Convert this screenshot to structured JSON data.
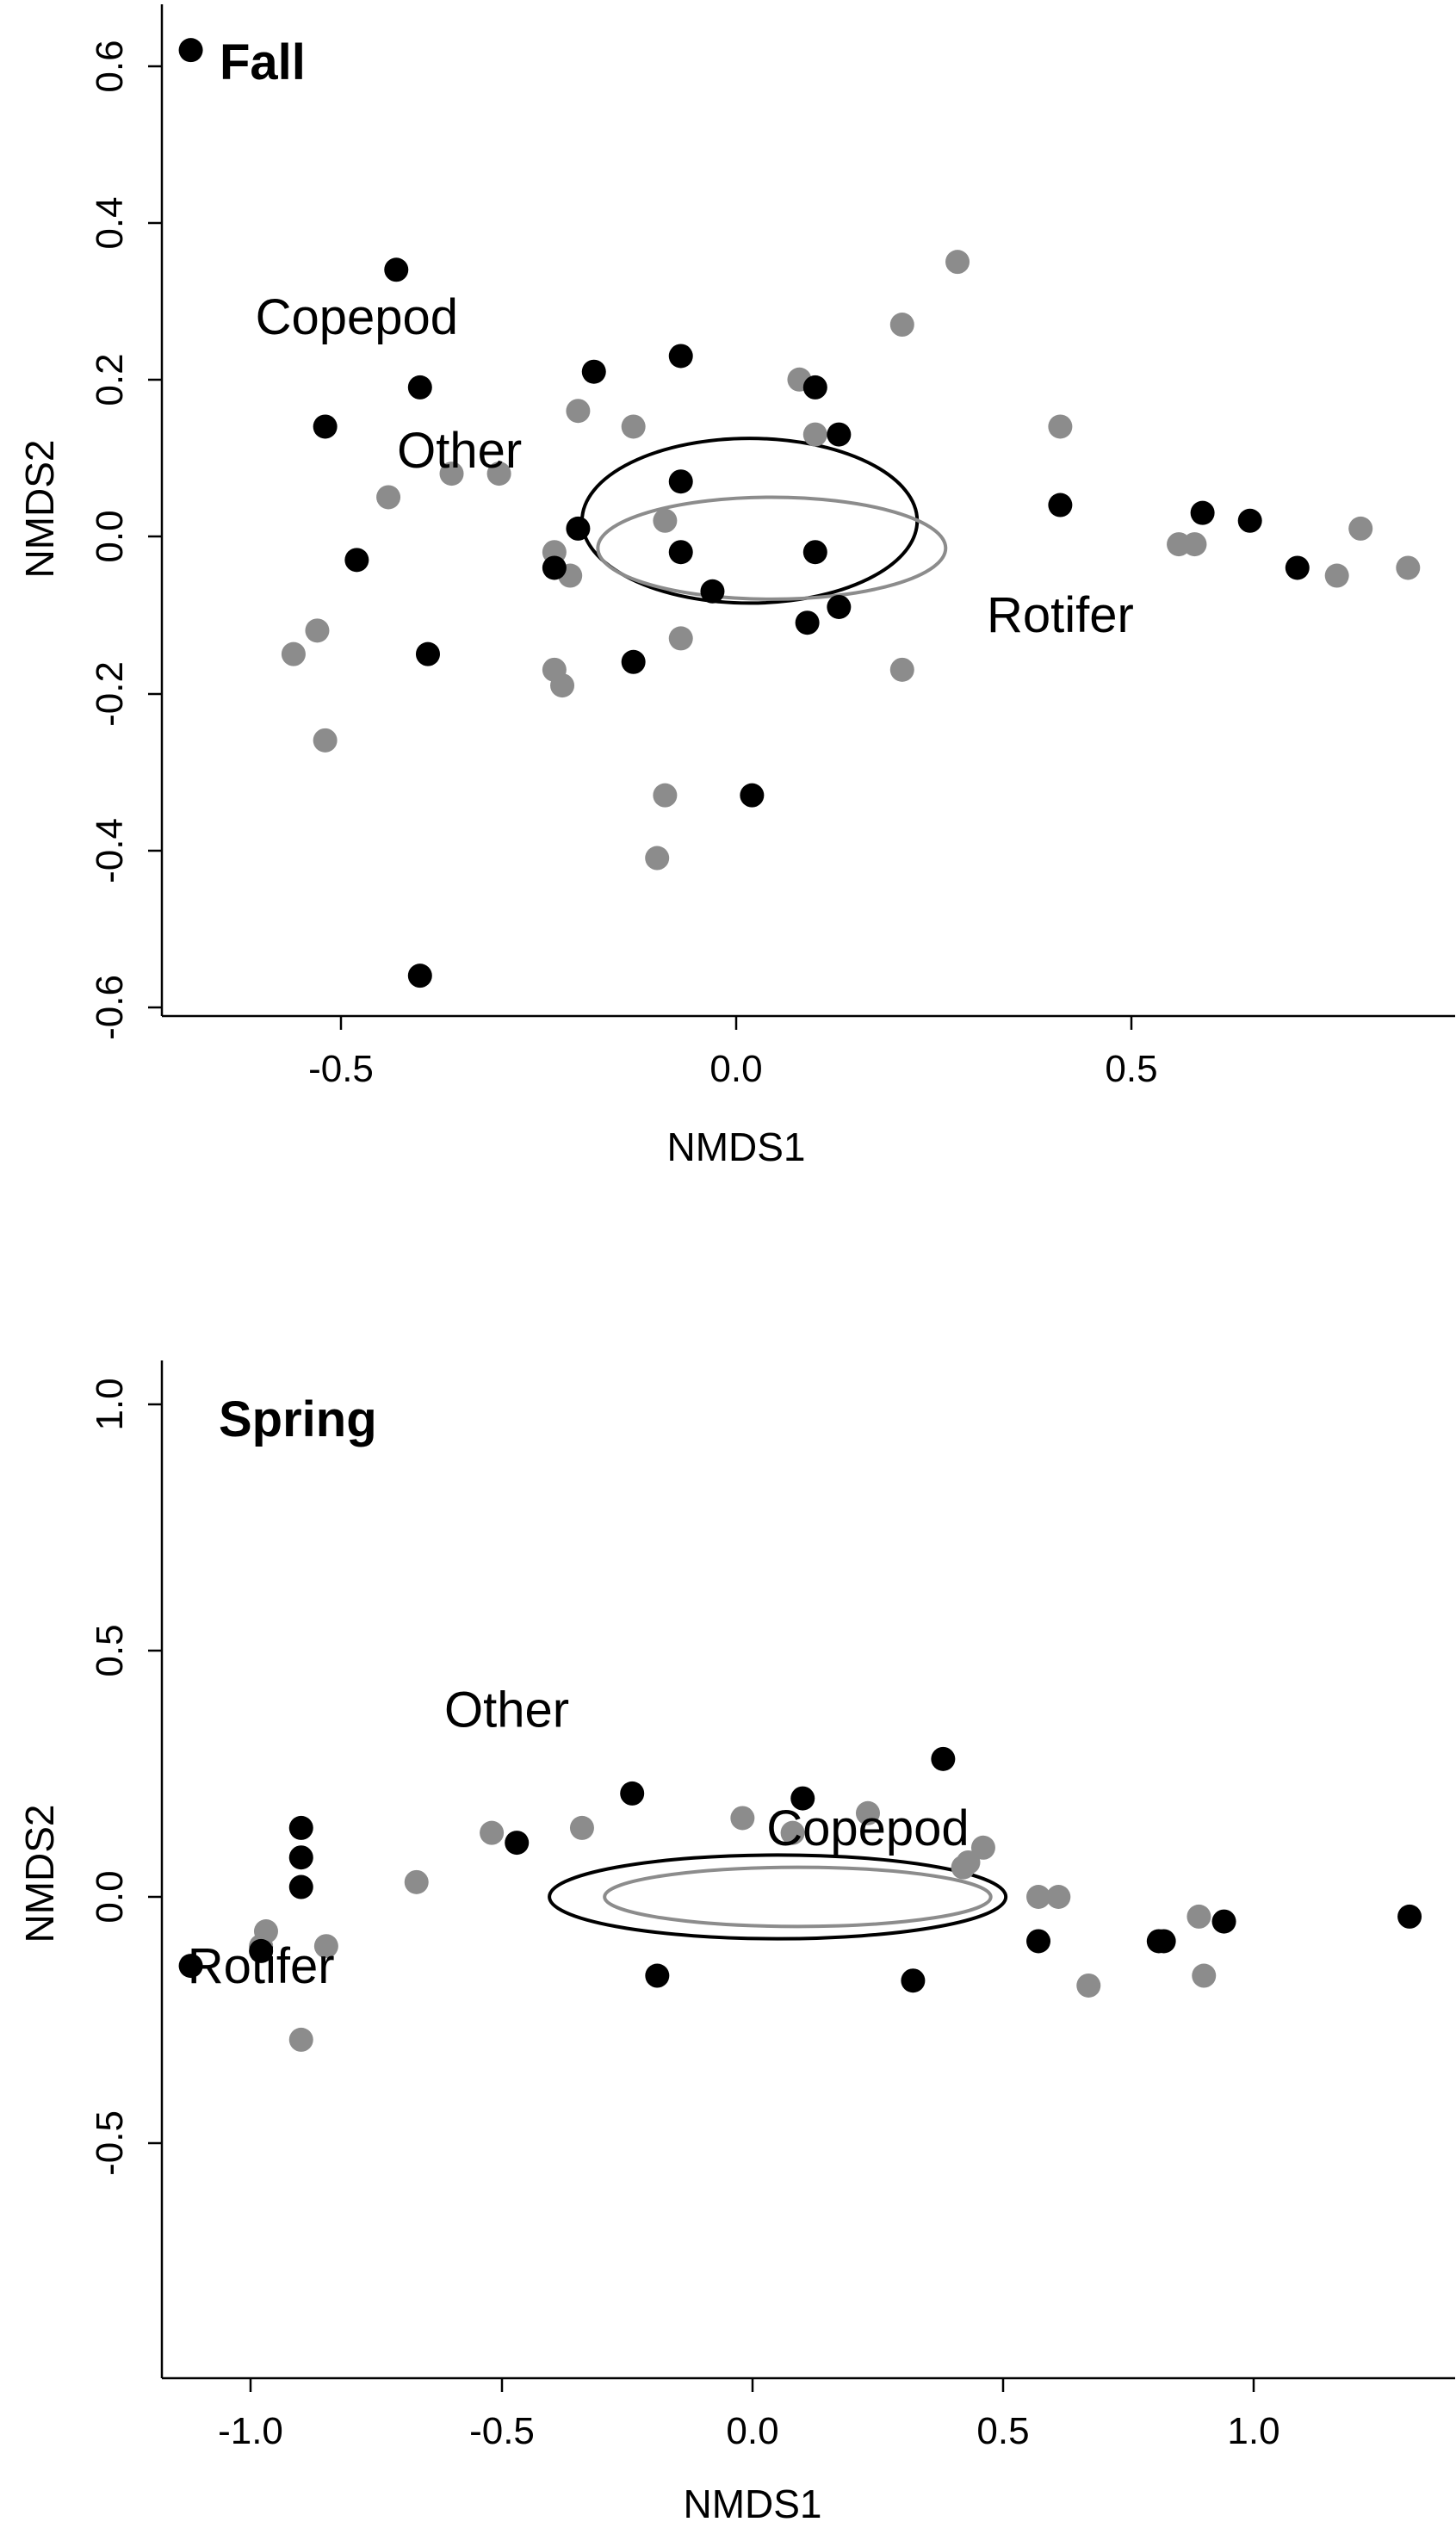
{
  "colors": {
    "sample_dark": "#000000",
    "sample_light": "#8c8c8c",
    "ellipse_dark": "#000000",
    "ellipse_light": "#8c8c8c"
  },
  "chart_data": [
    {
      "type": "scatter",
      "title": "Fall",
      "xlabel": "NMDS1",
      "ylabel": "NMDS2",
      "xlim": [
        -0.75,
        0.92
      ],
      "ylim": [
        -0.62,
        0.67
      ],
      "xticks": [
        "-0.5",
        "0.0",
        "0.5"
      ],
      "yticks": [
        "-0.6",
        "-0.4",
        "-0.2",
        "0.0",
        "0.2",
        "0.4",
        "0.6"
      ],
      "labels": [
        {
          "text": "Copepod",
          "x": -0.48,
          "y": 0.28
        },
        {
          "text": "Other",
          "x": -0.35,
          "y": 0.11
        },
        {
          "text": "Rotifer",
          "x": 0.41,
          "y": -0.1
        }
      ],
      "ellipses": [
        {
          "color": "dark",
          "cx": 0.017,
          "cy": 0.02,
          "rx": 0.212,
          "ry": 0.105
        },
        {
          "color": "light",
          "cx": 0.045,
          "cy": -0.015,
          "rx": 0.22,
          "ry": 0.065
        }
      ],
      "series": [
        {
          "color": "dark",
          "points": [
            [
              -0.69,
              0.62
            ],
            [
              -0.43,
              0.34
            ],
            [
              -0.4,
              0.19
            ],
            [
              -0.52,
              0.14
            ],
            [
              -0.48,
              -0.03
            ],
            [
              -0.39,
              -0.15
            ],
            [
              -0.4,
              -0.56
            ],
            [
              -0.18,
              0.21
            ],
            [
              -0.07,
              0.23
            ],
            [
              -0.07,
              0.07
            ],
            [
              -0.2,
              0.01
            ],
            [
              -0.23,
              -0.04
            ],
            [
              -0.07,
              -0.02
            ],
            [
              -0.03,
              -0.07
            ],
            [
              -0.13,
              -0.16
            ],
            [
              0.1,
              0.19
            ],
            [
              0.13,
              0.13
            ],
            [
              0.1,
              -0.02
            ],
            [
              0.13,
              -0.09
            ],
            [
              0.09,
              -0.11
            ],
            [
              0.02,
              -0.33
            ],
            [
              0.41,
              0.04
            ],
            [
              0.59,
              0.03
            ],
            [
              0.65,
              0.02
            ],
            [
              0.71,
              -0.04
            ]
          ]
        },
        {
          "color": "light",
          "points": [
            [
              -0.53,
              -0.12
            ],
            [
              -0.56,
              -0.15
            ],
            [
              -0.52,
              -0.26
            ],
            [
              -0.44,
              0.05
            ],
            [
              -0.36,
              0.08
            ],
            [
              -0.3,
              0.08
            ],
            [
              -0.2,
              0.16
            ],
            [
              -0.13,
              0.14
            ],
            [
              -0.23,
              -0.02
            ],
            [
              -0.21,
              -0.05
            ],
            [
              -0.23,
              -0.17
            ],
            [
              -0.22,
              -0.19
            ],
            [
              -0.09,
              0.02
            ],
            [
              -0.07,
              -0.13
            ],
            [
              -0.09,
              -0.33
            ],
            [
              -0.1,
              -0.41
            ],
            [
              0.08,
              0.2
            ],
            [
              0.1,
              0.13
            ],
            [
              0.21,
              0.27
            ],
            [
              0.28,
              0.35
            ],
            [
              0.21,
              -0.17
            ],
            [
              0.41,
              0.14
            ],
            [
              0.56,
              -0.01
            ],
            [
              0.58,
              -0.01
            ],
            [
              0.76,
              -0.05
            ],
            [
              0.79,
              0.01
            ],
            [
              0.85,
              -0.04
            ]
          ]
        }
      ]
    },
    {
      "type": "scatter",
      "title": "Spring",
      "xlabel": "NMDS1",
      "ylabel": "NMDS2",
      "xlim": [
        -1.2,
        1.38
      ],
      "ylim": [
        -0.95,
        1.08
      ],
      "xticks": [
        "-1.0",
        "-0.5",
        "0.0",
        "0.5",
        "1.0"
      ],
      "yticks": [
        "-0.5",
        "0.0",
        "0.5",
        "1.0"
      ],
      "labels": [
        {
          "text": "Other",
          "x": -0.49,
          "y": 0.38
        },
        {
          "text": "Copepod",
          "x": 0.23,
          "y": 0.14
        },
        {
          "text": "Rotifer",
          "x": -0.98,
          "y": -0.14
        }
      ],
      "ellipses": [
        {
          "color": "dark",
          "cx": 0.05,
          "cy": 0.0,
          "rx": 0.455,
          "ry": 0.085
        },
        {
          "color": "light",
          "cx": 0.09,
          "cy": 0.0,
          "rx": 0.385,
          "ry": 0.06
        }
      ],
      "series": [
        {
          "color": "dark",
          "points": [
            [
              -0.9,
              0.14
            ],
            [
              -0.9,
              0.08
            ],
            [
              -0.9,
              0.02
            ],
            [
              -1.12,
              -0.14
            ],
            [
              -0.98,
              -0.11
            ],
            [
              -0.47,
              0.11
            ],
            [
              -0.24,
              0.21
            ],
            [
              -0.19,
              -0.16
            ],
            [
              0.1,
              0.2
            ],
            [
              0.32,
              -0.17
            ],
            [
              0.38,
              0.28
            ],
            [
              0.57,
              -0.09
            ],
            [
              0.81,
              -0.09
            ],
            [
              0.82,
              -0.09
            ],
            [
              0.94,
              -0.05
            ],
            [
              1.31,
              -0.04
            ]
          ]
        },
        {
          "color": "light",
          "points": [
            [
              -0.97,
              -0.07
            ],
            [
              -0.98,
              -0.1
            ],
            [
              -0.85,
              -0.1
            ],
            [
              -0.9,
              -0.29
            ],
            [
              -0.67,
              0.03
            ],
            [
              -0.52,
              0.13
            ],
            [
              -0.34,
              0.14
            ],
            [
              -0.02,
              0.16
            ],
            [
              0.08,
              0.13
            ],
            [
              0.23,
              0.17
            ],
            [
              0.43,
              0.07
            ],
            [
              0.46,
              0.1
            ],
            [
              0.42,
              0.06
            ],
            [
              0.57,
              0.0
            ],
            [
              0.61,
              0.0
            ],
            [
              0.67,
              -0.18
            ],
            [
              0.89,
              -0.04
            ],
            [
              0.9,
              -0.16
            ]
          ]
        }
      ]
    }
  ]
}
